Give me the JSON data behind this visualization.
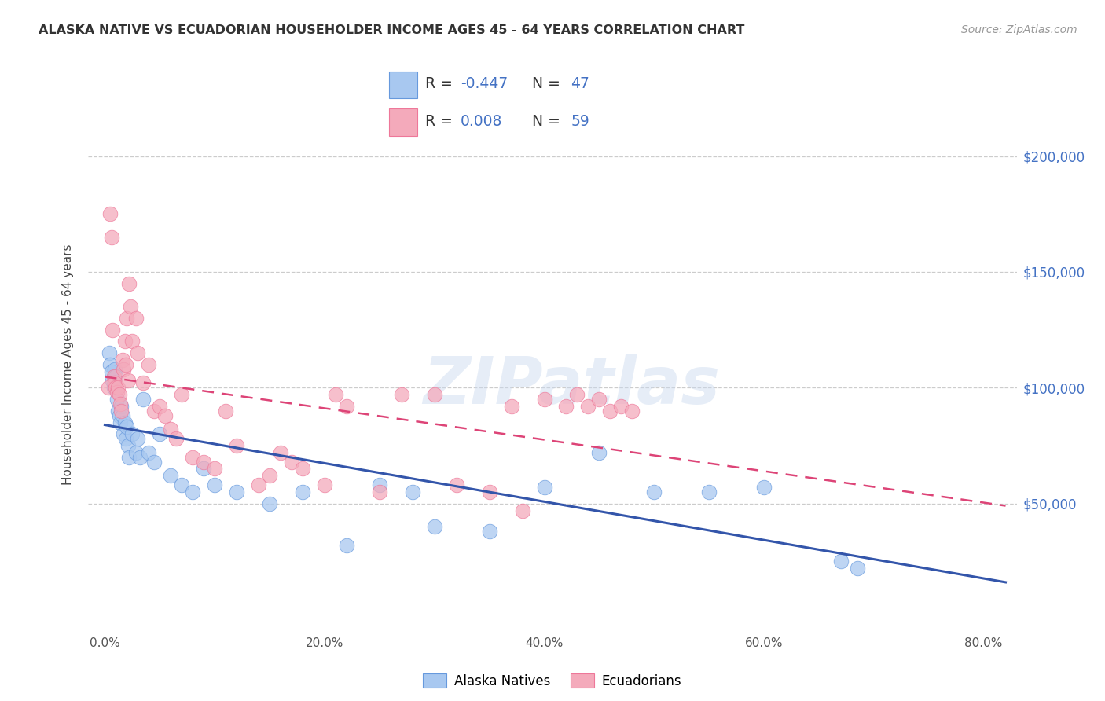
{
  "title": "ALASKA NATIVE VS ECUADORIAN HOUSEHOLDER INCOME AGES 45 - 64 YEARS CORRELATION CHART",
  "source": "Source: ZipAtlas.com",
  "xlabel_ticks": [
    "0.0%",
    "20.0%",
    "40.0%",
    "60.0%",
    "80.0%"
  ],
  "xlabel_values": [
    0.0,
    20.0,
    40.0,
    60.0,
    80.0
  ],
  "ylabel_ticks": [
    "$50,000",
    "$100,000",
    "$150,000",
    "$200,000"
  ],
  "ylabel_values": [
    50000,
    100000,
    150000,
    200000
  ],
  "xlim": [
    -1.5,
    83
  ],
  "ylim": [
    -5000,
    225000
  ],
  "watermark": "ZIPatlas",
  "legend_label_blue": "Alaska Natives",
  "legend_label_pink": "Ecuadorians",
  "r_blue": "-0.447",
  "n_blue": "47",
  "r_pink": "0.008",
  "n_pink": "59",
  "blue_dot_color": "#A8C8F0",
  "pink_dot_color": "#F4AABB",
  "blue_edge_color": "#6699DD",
  "pink_edge_color": "#EE7799",
  "blue_line_color": "#3355AA",
  "pink_line_color": "#DD4477",
  "grid_color": "#CCCCCC",
  "alaska_x": [
    0.4,
    0.5,
    0.6,
    0.7,
    0.8,
    0.9,
    1.0,
    1.1,
    1.2,
    1.3,
    1.4,
    1.5,
    1.6,
    1.7,
    1.8,
    1.9,
    2.0,
    2.1,
    2.2,
    2.5,
    2.8,
    3.0,
    3.2,
    3.5,
    4.0,
    4.5,
    5.0,
    6.0,
    7.0,
    8.0,
    9.0,
    10.0,
    12.0,
    15.0,
    18.0,
    22.0,
    25.0,
    28.0,
    30.0,
    35.0,
    40.0,
    45.0,
    50.0,
    55.0,
    60.0,
    67.0,
    68.5
  ],
  "alaska_y": [
    115000,
    110000,
    107000,
    103000,
    100000,
    108000,
    105000,
    95000,
    90000,
    88000,
    85000,
    92000,
    88000,
    80000,
    85000,
    78000,
    83000,
    75000,
    70000,
    80000,
    72000,
    78000,
    70000,
    95000,
    72000,
    68000,
    80000,
    62000,
    58000,
    55000,
    65000,
    58000,
    55000,
    50000,
    55000,
    32000,
    58000,
    55000,
    40000,
    38000,
    57000,
    72000,
    55000,
    55000,
    57000,
    25000,
    22000
  ],
  "ecuador_x": [
    0.3,
    0.5,
    0.6,
    0.7,
    0.8,
    0.9,
    1.0,
    1.1,
    1.2,
    1.3,
    1.4,
    1.5,
    1.6,
    1.7,
    1.8,
    1.9,
    2.0,
    2.1,
    2.2,
    2.3,
    2.5,
    2.8,
    3.0,
    3.5,
    4.0,
    4.5,
    5.0,
    5.5,
    6.0,
    6.5,
    7.0,
    8.0,
    9.0,
    10.0,
    11.0,
    12.0,
    14.0,
    15.0,
    16.0,
    17.0,
    18.0,
    20.0,
    21.0,
    22.0,
    25.0,
    27.0,
    30.0,
    32.0,
    35.0,
    37.0,
    38.0,
    40.0,
    42.0,
    43.0,
    44.0,
    45.0,
    46.0,
    47.0,
    48.0
  ],
  "ecuador_y": [
    100000,
    175000,
    165000,
    125000,
    105000,
    102000,
    100000,
    98000,
    100000,
    97000,
    93000,
    90000,
    112000,
    108000,
    120000,
    110000,
    130000,
    103000,
    145000,
    135000,
    120000,
    130000,
    115000,
    102000,
    110000,
    90000,
    92000,
    88000,
    82000,
    78000,
    97000,
    70000,
    68000,
    65000,
    90000,
    75000,
    58000,
    62000,
    72000,
    68000,
    65000,
    58000,
    97000,
    92000,
    55000,
    97000,
    97000,
    58000,
    55000,
    92000,
    47000,
    95000,
    92000,
    97000,
    92000,
    95000,
    90000,
    92000,
    90000
  ]
}
